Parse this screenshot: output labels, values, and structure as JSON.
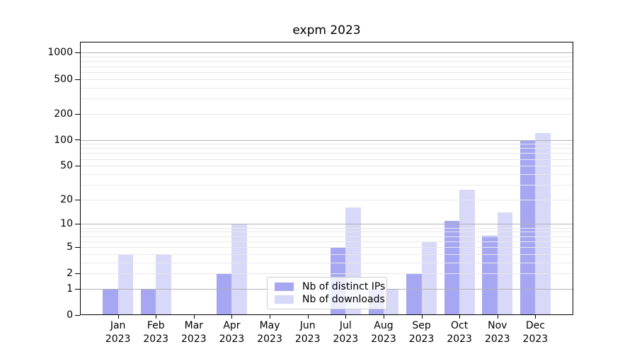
{
  "chart_data": {
    "type": "bar",
    "title": "expm 2023",
    "categories": [
      "Jan",
      "Feb",
      "Mar",
      "Apr",
      "May",
      "Jun",
      "Jul",
      "Aug",
      "Sep",
      "Oct",
      "Nov",
      "Dec"
    ],
    "xtick_sub_label": "2023",
    "series": [
      {
        "name": "Nb of distinct IPs",
        "color": "#a6a6f2",
        "values": [
          1,
          1,
          0,
          2,
          0,
          0,
          5,
          1,
          2,
          11,
          7,
          97
        ]
      },
      {
        "name": "Nb of downloads",
        "color": "#d8d8f8",
        "values": [
          4,
          4,
          0,
          10,
          0,
          0,
          16,
          1,
          6,
          26,
          14,
          120
        ]
      }
    ],
    "yscale": "log10(value+1)",
    "ylim": [
      0,
      1334
    ],
    "yticks": [
      0,
      1,
      2,
      5,
      10,
      20,
      50,
      100,
      200,
      500,
      1000
    ],
    "minor_yticks": [
      3,
      4,
      6,
      7,
      8,
      9,
      30,
      40,
      60,
      70,
      80,
      90,
      300,
      400,
      600,
      700,
      800,
      900
    ],
    "major_grid_at": [
      1,
      10,
      100,
      1000
    ],
    "grid": true,
    "legend_position": "lower center inside"
  },
  "colors": {
    "background": "#ffffff",
    "axis_frame": "#000000",
    "grid_major": "#b3b3b3",
    "grid_minor": "#e8e8e8",
    "text": "#000000",
    "legend_border": "#cccccc"
  }
}
